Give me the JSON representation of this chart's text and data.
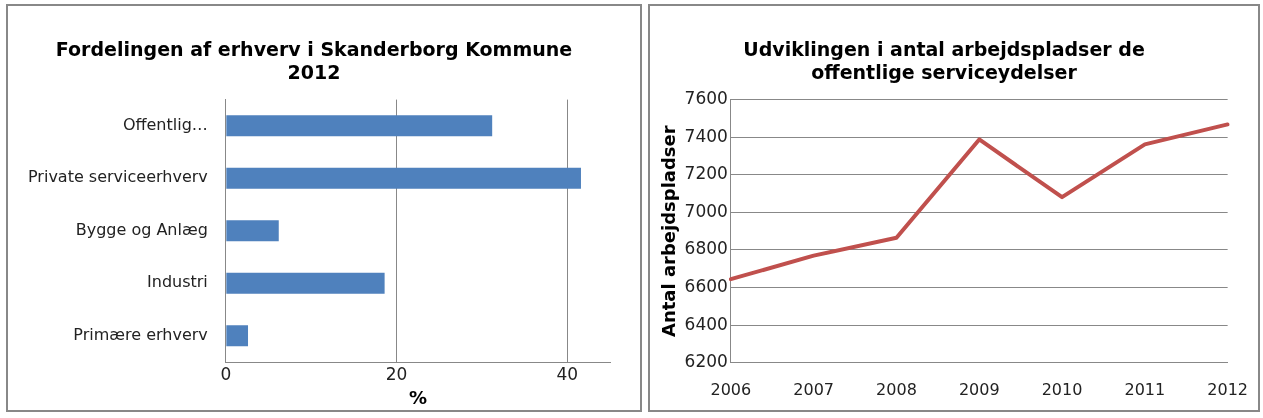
{
  "chart_data": [
    {
      "type": "bar",
      "orientation": "horizontal",
      "title": "Fordelingen af erhverv i Skanderborg Kommune 2012",
      "xlabel": "%",
      "categories": [
        "Offentlig…",
        "Private serviceerhverv",
        "Bygge og Anlæg",
        "Industri",
        "Primære erhverv"
      ],
      "values": [
        31.2,
        41.6,
        6.2,
        18.6,
        2.6
      ],
      "color": "#4f81bd",
      "xlim": [
        0,
        45
      ],
      "xticks": [
        0,
        20,
        40
      ],
      "grid": "x",
      "legend": false
    },
    {
      "type": "line",
      "title": "Udviklingen i antal arbejdspladser de offentlige serviceydelser",
      "ylabel": "Antal arbejdspladser",
      "categories": [
        "2006",
        "2007",
        "2008",
        "2009",
        "2010",
        "2011",
        "2012"
      ],
      "series": [
        {
          "color": "#c0504d",
          "values": [
            6645,
            6770,
            6865,
            7388,
            7081,
            7362,
            7468
          ]
        }
      ],
      "ylim": [
        6200,
        7600
      ],
      "yticks": [
        6200,
        6400,
        6600,
        6800,
        7000,
        7200,
        7400,
        7600
      ],
      "grid": "y",
      "legend": false,
      "marker": "none"
    }
  ]
}
